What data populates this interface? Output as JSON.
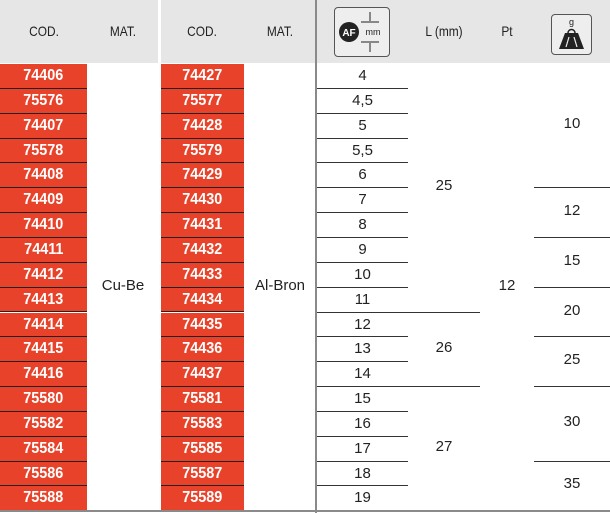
{
  "header": {
    "cod1": "COD.",
    "mat1": "MAT.",
    "cod2": "COD.",
    "mat2": "MAT.",
    "af_icon": "across-flats-size-icon",
    "af_label": "AF",
    "af_unit": "mm",
    "length": "L (mm)",
    "pt": "Pt",
    "weight_icon": "weight-icon",
    "weight_unit": "g"
  },
  "colors": {
    "code_bg": "#e8432a",
    "header_bg": "#e6e6e6"
  },
  "material1": "Cu-Be",
  "material2": "Al-Bron",
  "pt": "12",
  "rows": [
    {
      "cod1": "74406",
      "cod2": "74427",
      "af": "4"
    },
    {
      "cod1": "75576",
      "cod2": "75577",
      "af": "4,5"
    },
    {
      "cod1": "74407",
      "cod2": "74428",
      "af": "5"
    },
    {
      "cod1": "75578",
      "cod2": "75579",
      "af": "5,5"
    },
    {
      "cod1": "74408",
      "cod2": "74429",
      "af": "6"
    },
    {
      "cod1": "74409",
      "cod2": "74430",
      "af": "7"
    },
    {
      "cod1": "74410",
      "cod2": "74431",
      "af": "8"
    },
    {
      "cod1": "74411",
      "cod2": "74432",
      "af": "9"
    },
    {
      "cod1": "74412",
      "cod2": "74433",
      "af": "10"
    },
    {
      "cod1": "74413",
      "cod2": "74434",
      "af": "11"
    },
    {
      "cod1": "74414",
      "cod2": "74435",
      "af": "12"
    },
    {
      "cod1": "74415",
      "cod2": "74436",
      "af": "13"
    },
    {
      "cod1": "74416",
      "cod2": "74437",
      "af": "14"
    },
    {
      "cod1": "75580",
      "cod2": "75581",
      "af": "15"
    },
    {
      "cod1": "75582",
      "cod2": "75583",
      "af": "16"
    },
    {
      "cod1": "75584",
      "cod2": "75585",
      "af": "17"
    },
    {
      "cod1": "75586",
      "cod2": "75587",
      "af": "18"
    },
    {
      "cod1": "75588",
      "cod2": "75589",
      "af": "19"
    }
  ],
  "length_groups": [
    {
      "value": "25",
      "rows": 10
    },
    {
      "value": "26",
      "rows": 3
    },
    {
      "value": "27",
      "rows": 5
    }
  ],
  "weight_groups": [
    {
      "value": "10",
      "rows": 5
    },
    {
      "value": "12",
      "rows": 2
    },
    {
      "value": "15",
      "rows": 2
    },
    {
      "value": "20",
      "rows": 2
    },
    {
      "value": "25",
      "rows": 2
    },
    {
      "value": "30",
      "rows": 3
    },
    {
      "value": "35",
      "rows": 2
    }
  ]
}
